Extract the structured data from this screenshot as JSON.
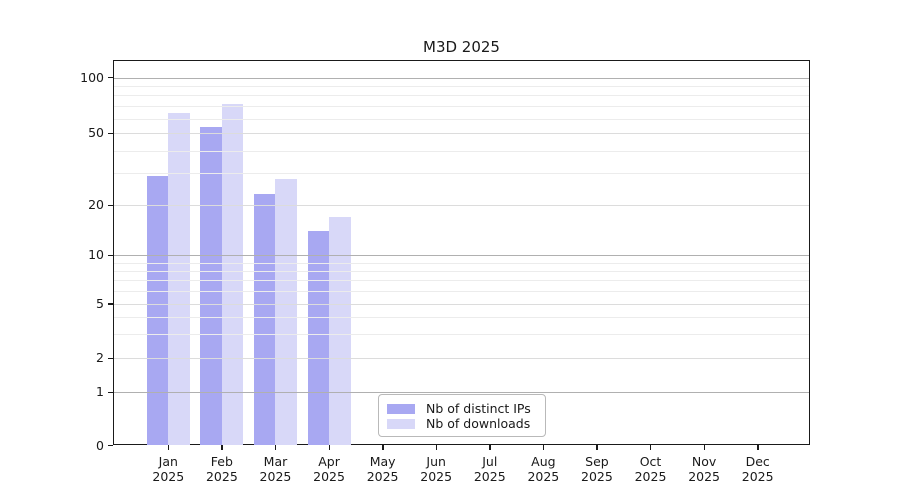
{
  "chart_data": {
    "type": "bar",
    "title": "M3D 2025",
    "categories": [
      "Jan",
      "Feb",
      "Mar",
      "Apr",
      "May",
      "Jun",
      "Jul",
      "Aug",
      "Sep",
      "Oct",
      "Nov",
      "Dec"
    ],
    "year": "2025",
    "series": [
      {
        "name": "Nb of distinct IPs",
        "color": "#a8a8f2",
        "values": [
          29,
          54,
          23,
          14,
          0,
          0,
          0,
          0,
          0,
          0,
          0,
          0
        ]
      },
      {
        "name": "Nb of downloads",
        "color": "#d8d8f8",
        "values": [
          64,
          72,
          28,
          17,
          0,
          0,
          0,
          0,
          0,
          0,
          0,
          0
        ]
      }
    ],
    "y_axis": {
      "scale": "log-with-zero-baseline",
      "tick_labels": [
        "0",
        "1",
        "2",
        "5",
        "10",
        "20",
        "50",
        "100"
      ],
      "minor_ticks": [
        3,
        4,
        6,
        7,
        8,
        9,
        30,
        40,
        60,
        70,
        80,
        90
      ],
      "ylim": [
        0,
        130
      ]
    },
    "xlabel": "",
    "ylabel": "",
    "grid": "horizontal major and minor",
    "legend_position": "inside-bottom-center"
  },
  "colors": {
    "bar_distinct_ips": "#a8a8f2",
    "bar_downloads": "#d8d8f8",
    "grid_major": "#b0b0b0",
    "grid_mid": "#dcdcdc",
    "grid_minor": "#ececec",
    "axis": "#1a1a1a"
  }
}
